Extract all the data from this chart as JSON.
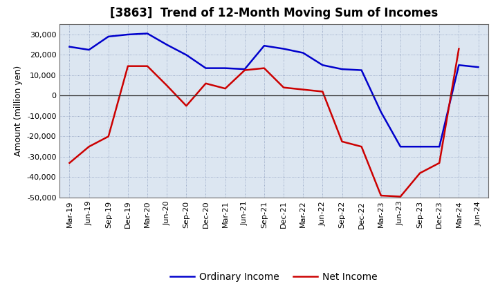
{
  "title": "[3863]  Trend of 12-Month Moving Sum of Incomes",
  "ylabel": "Amount (million yen)",
  "ylim": [
    -50000,
    35000
  ],
  "yticks": [
    -50000,
    -40000,
    -30000,
    -20000,
    -10000,
    0,
    10000,
    20000,
    30000
  ],
  "plot_bg_color": "#dce6f1",
  "fig_bg_color": "#ffffff",
  "grid_color": "#8899bb",
  "x_labels": [
    "Mar-19",
    "Jun-19",
    "Sep-19",
    "Dec-19",
    "Mar-20",
    "Jun-20",
    "Sep-20",
    "Dec-20",
    "Mar-21",
    "Jun-21",
    "Sep-21",
    "Dec-21",
    "Mar-22",
    "Jun-22",
    "Sep-22",
    "Dec-22",
    "Mar-23",
    "Jun-23",
    "Sep-23",
    "Dec-23",
    "Mar-24",
    "Jun-24"
  ],
  "ordinary_income": [
    24000,
    22500,
    29000,
    30000,
    30500,
    25000,
    20000,
    13500,
    13500,
    13000,
    24500,
    23000,
    21000,
    15000,
    13000,
    12500,
    -8000,
    -25000,
    -25000,
    -25000,
    15000,
    14000
  ],
  "net_income": [
    -33000,
    -25000,
    -20000,
    14500,
    14500,
    5000,
    -5000,
    6000,
    3500,
    12500,
    13500,
    4000,
    3000,
    2000,
    -22500,
    -25000,
    -49000,
    -49500,
    -38000,
    -33000,
    23000,
    null
  ],
  "ordinary_color": "#0000cc",
  "net_color": "#cc0000",
  "line_width": 1.8,
  "title_fontsize": 12,
  "axis_fontsize": 9,
  "tick_fontsize": 8,
  "legend_fontsize": 10
}
